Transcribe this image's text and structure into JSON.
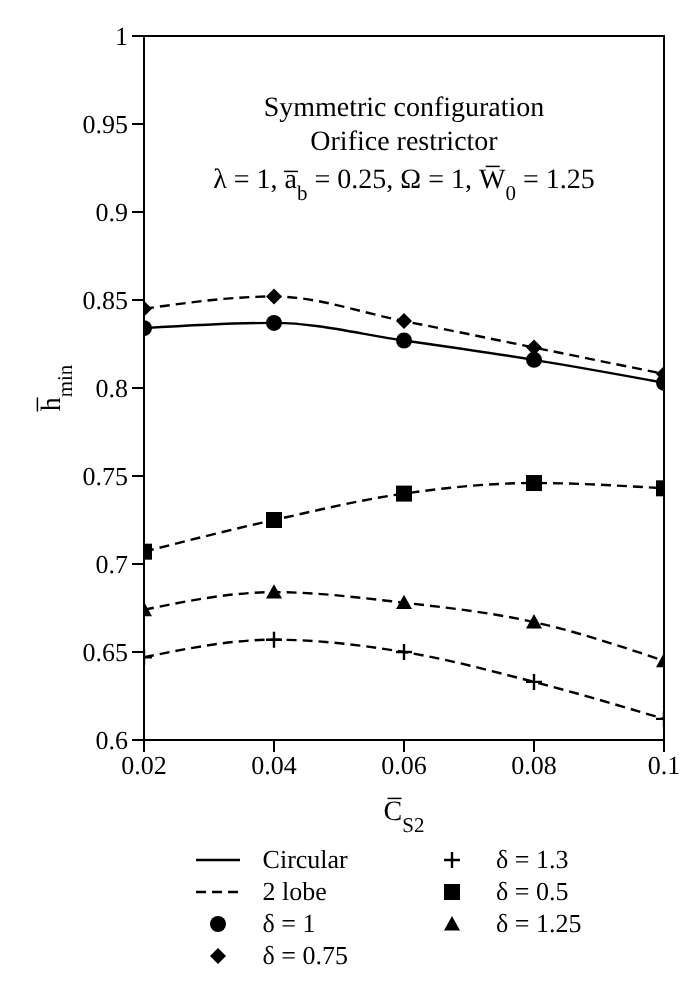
{
  "chart_data": {
    "type": "line",
    "title": "Symmetric configuration",
    "subtitle": "Orifice restrictor",
    "annotations": [
      "λ = 1, a̅$_{b}$ = 0.25, Ω = 1, W̅$_{0}$ = 1.25",
      "Circular",
      "2 lobe"
    ],
    "xlabel": "C̅$_{S2}$",
    "ylabel": "h̅$_{min}$",
    "x": [
      0.02,
      0.04,
      0.06,
      0.08,
      0.1
    ],
    "xlim": [
      0.02,
      0.1
    ],
    "xticks": [
      0.02,
      0.04,
      0.06,
      0.08,
      0.1
    ],
    "ylim": [
      0.6,
      1
    ],
    "yticks": [
      0.6,
      0.65,
      0.7,
      0.75,
      0.8,
      0.85,
      0.9,
      0.95,
      1
    ],
    "grid": false,
    "legend": "bottom",
    "series": [
      {
        "name": "δ = 1",
        "color": "#000000",
        "marker": "circle",
        "line_style": "solid",
        "values": [
          0.834,
          0.837,
          0.827,
          0.816,
          0.803
        ]
      },
      {
        "name": "δ = 0.75",
        "color": "#000000",
        "marker": "diamond",
        "line_style": "dashed",
        "values": [
          0.845,
          0.852,
          0.838,
          0.823,
          0.808
        ]
      },
      {
        "name": "δ = 1.3",
        "color": "#000000",
        "marker": "cross",
        "line_style": "dashed",
        "values": [
          0.647,
          0.657,
          0.65,
          0.633,
          0.612
        ]
      },
      {
        "name": "δ = 0.5",
        "color": "#000000",
        "marker": "square",
        "line_style": "dashed",
        "values": [
          0.707,
          0.725,
          0.74,
          0.746,
          0.743
        ]
      },
      {
        "name": "δ = 1.25",
        "color": "#000000",
        "marker": "triangle",
        "line_style": "dashed",
        "values": [
          0.674,
          0.684,
          0.678,
          0.667,
          0.645
        ]
      }
    ]
  }
}
